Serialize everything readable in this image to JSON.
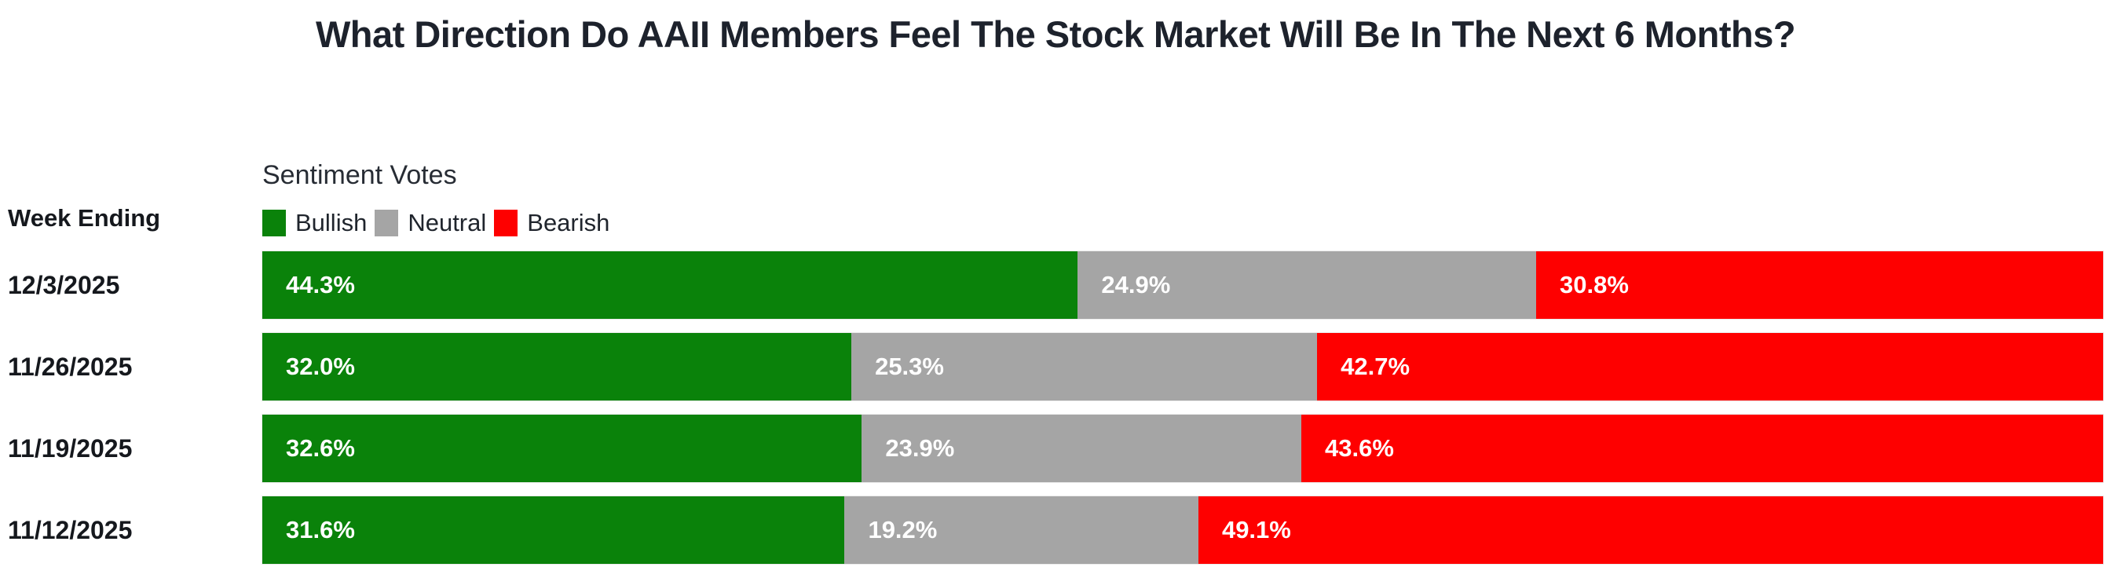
{
  "title": "What Direction Do AAII Members Feel The Stock Market Will Be In The Next 6 Months?",
  "left_header": "Week Ending",
  "colors": {
    "bullish": "#0a820a",
    "neutral": "#a5a5a5",
    "bearish": "#fe0000",
    "title_text": "#1d222c",
    "bar_label_text": "#ffffff",
    "background": "#ffffff"
  },
  "legend": {
    "title": "Sentiment Votes",
    "items": [
      {
        "label": "Bullish",
        "color": "#0a820a"
      },
      {
        "label": "Neutral",
        "color": "#a5a5a5"
      },
      {
        "label": "Bearish",
        "color": "#fe0000"
      }
    ]
  },
  "chart_data": {
    "type": "bar",
    "orientation": "horizontal",
    "stacked": true,
    "value_unit": "percent",
    "axis_range": [
      0,
      100
    ],
    "grid": false,
    "legend_position": "top-left",
    "title": "What Direction Do AAII Members Feel The Stock Market Will Be In The Next 6 Months?",
    "xlabel": "",
    "ylabel": "Week Ending",
    "categories": [
      "12/3/2025",
      "11/26/2025",
      "11/19/2025",
      "11/12/2025"
    ],
    "series": [
      {
        "name": "Bullish",
        "color": "#0a820a",
        "values": [
          44.3,
          32.0,
          32.6,
          31.6
        ]
      },
      {
        "name": "Neutral",
        "color": "#a5a5a5",
        "values": [
          24.9,
          25.3,
          23.9,
          19.2
        ]
      },
      {
        "name": "Bearish",
        "color": "#fe0000",
        "values": [
          30.8,
          42.7,
          43.6,
          49.1
        ]
      }
    ],
    "rows": [
      {
        "date": "12/3/2025",
        "bullish": 44.3,
        "neutral": 24.9,
        "bearish": 30.8,
        "bullish_label": "44.3%",
        "neutral_label": "24.9%",
        "bearish_label": "30.8%"
      },
      {
        "date": "11/26/2025",
        "bullish": 32.0,
        "neutral": 25.3,
        "bearish": 42.7,
        "bullish_label": "32.0%",
        "neutral_label": "25.3%",
        "bearish_label": "42.7%"
      },
      {
        "date": "11/19/2025",
        "bullish": 32.6,
        "neutral": 23.9,
        "bearish": 43.6,
        "bullish_label": "32.6%",
        "neutral_label": "23.9%",
        "bearish_label": "43.6%"
      },
      {
        "date": "11/12/2025",
        "bullish": 31.6,
        "neutral": 19.2,
        "bearish": 49.1,
        "bullish_label": "31.6%",
        "neutral_label": "19.2%",
        "bearish_label": "49.1%"
      }
    ]
  }
}
